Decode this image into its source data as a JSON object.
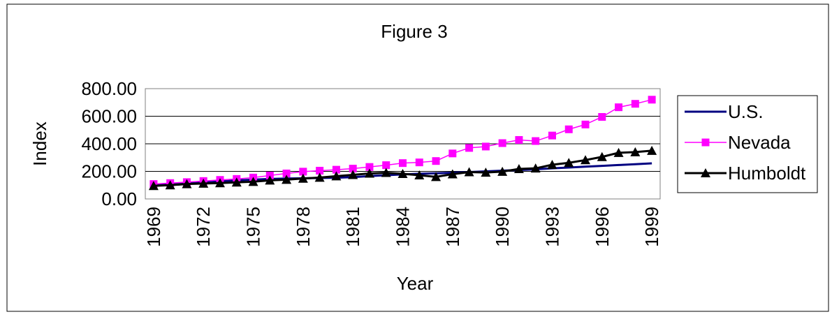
{
  "chart_data": {
    "type": "line",
    "title": "Figure 3",
    "xlabel": "Year",
    "ylabel": "Index",
    "x": [
      1969,
      1970,
      1971,
      1972,
      1973,
      1974,
      1975,
      1976,
      1977,
      1978,
      1979,
      1980,
      1981,
      1982,
      1983,
      1984,
      1985,
      1986,
      1987,
      1988,
      1989,
      1990,
      1991,
      1992,
      1993,
      1994,
      1995,
      1996,
      1997,
      1998,
      1999
    ],
    "x_tick_labels": [
      "1969",
      "1972",
      "1975",
      "1978",
      "1981",
      "1984",
      "1987",
      "1990",
      "1993",
      "1996",
      "1999"
    ],
    "y_tick_labels": [
      "0.00",
      "200.00",
      "400.00",
      "600.00",
      "800.00"
    ],
    "ylim": [
      0,
      800
    ],
    "grid": "horizontal",
    "legend_position": "right",
    "series": [
      {
        "name": "U.S.",
        "color": "#000080",
        "marker": "none",
        "values": [
          100,
          106,
          112,
          119,
          127,
          135,
          140,
          145,
          148,
          150,
          152,
          154,
          158,
          166,
          172,
          178,
          183,
          186,
          190,
          195,
          200,
          205,
          210,
          215,
          222,
          228,
          234,
          240,
          246,
          252,
          258
        ]
      },
      {
        "name": "Nevada",
        "color": "#ff00ff",
        "marker": "square",
        "values": [
          108,
          115,
          122,
          130,
          138,
          145,
          155,
          170,
          185,
          198,
          205,
          212,
          220,
          232,
          245,
          260,
          265,
          275,
          330,
          370,
          380,
          405,
          428,
          420,
          460,
          505,
          540,
          595,
          665,
          690,
          720
        ]
      },
      {
        "name": "Humboldt",
        "color": "#000000",
        "marker": "triangle",
        "values": [
          95,
          100,
          108,
          112,
          115,
          120,
          125,
          135,
          140,
          148,
          155,
          165,
          175,
          185,
          190,
          182,
          172,
          160,
          180,
          195,
          192,
          198,
          218,
          222,
          248,
          262,
          282,
          305,
          335,
          340,
          350
        ]
      }
    ]
  }
}
